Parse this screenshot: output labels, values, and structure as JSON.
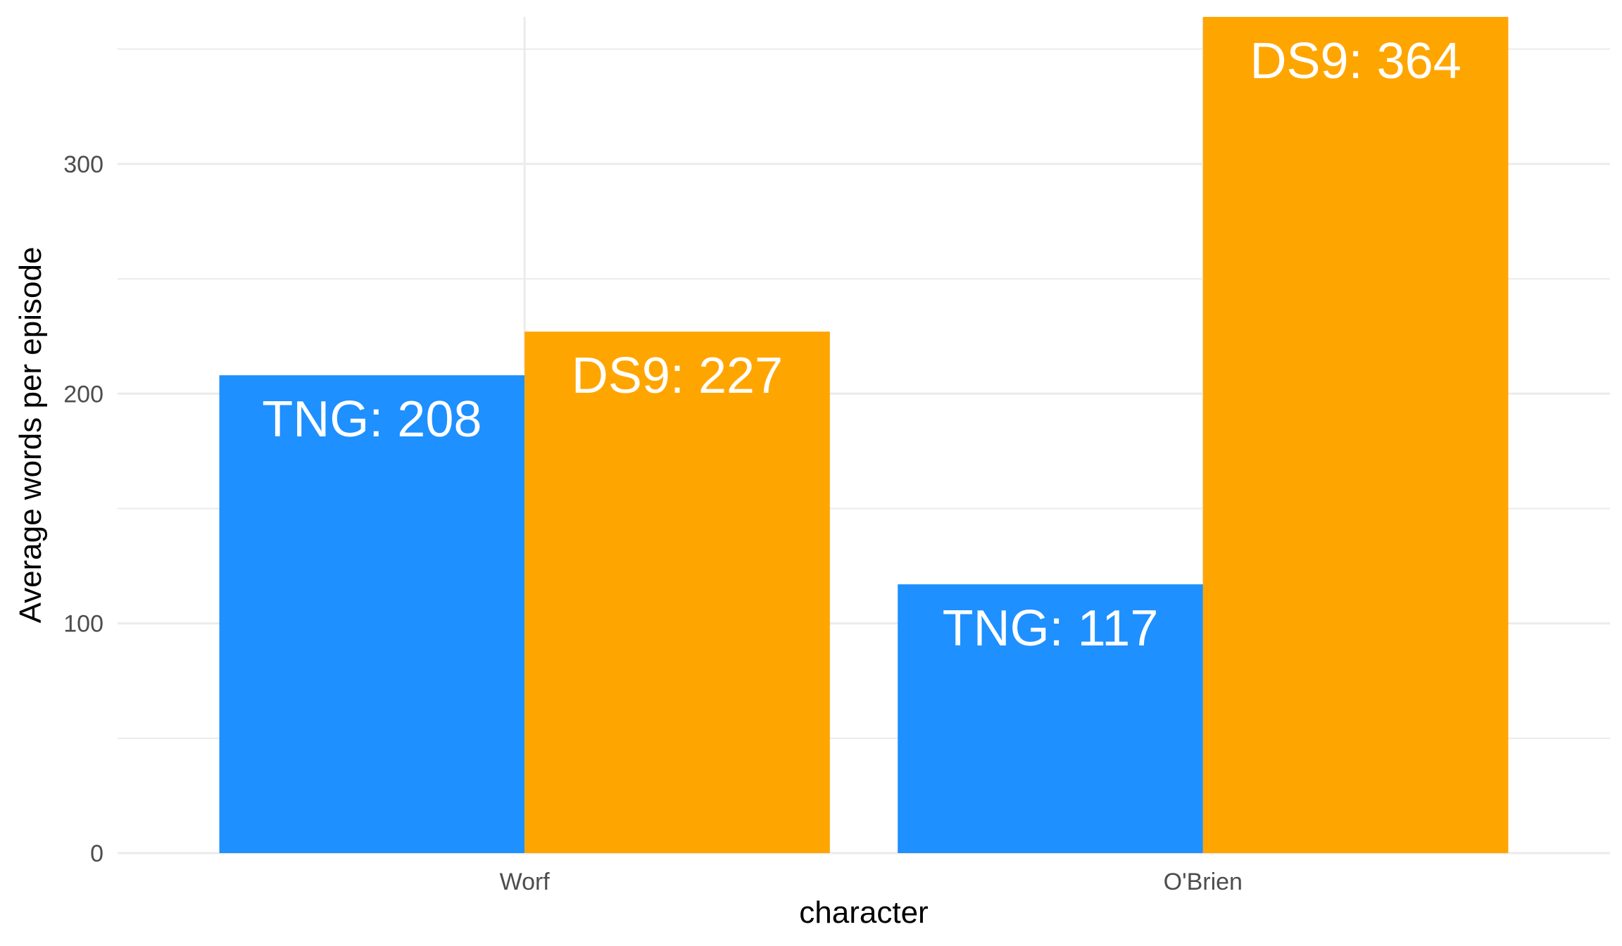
{
  "chart_data": {
    "type": "bar",
    "categories": [
      "Worf",
      "O'Brien"
    ],
    "series": [
      {
        "key": "TNG",
        "values": [
          208,
          117
        ],
        "labels": [
          "TNG: 208",
          "TNG: 117"
        ],
        "color": "#1E90FF"
      },
      {
        "key": "DS9",
        "values": [
          227,
          364
        ],
        "labels": [
          "DS9: 227",
          "DS9: 364"
        ],
        "color": "#FFA500"
      }
    ],
    "xlabel": "character",
    "ylabel": "Average words per episode",
    "ylim": [
      0,
      364
    ],
    "yticks": [
      0,
      100,
      200,
      300
    ],
    "yticklabels": [
      "0",
      "100",
      "200",
      "300"
    ],
    "grid": true,
    "legend": "none"
  }
}
